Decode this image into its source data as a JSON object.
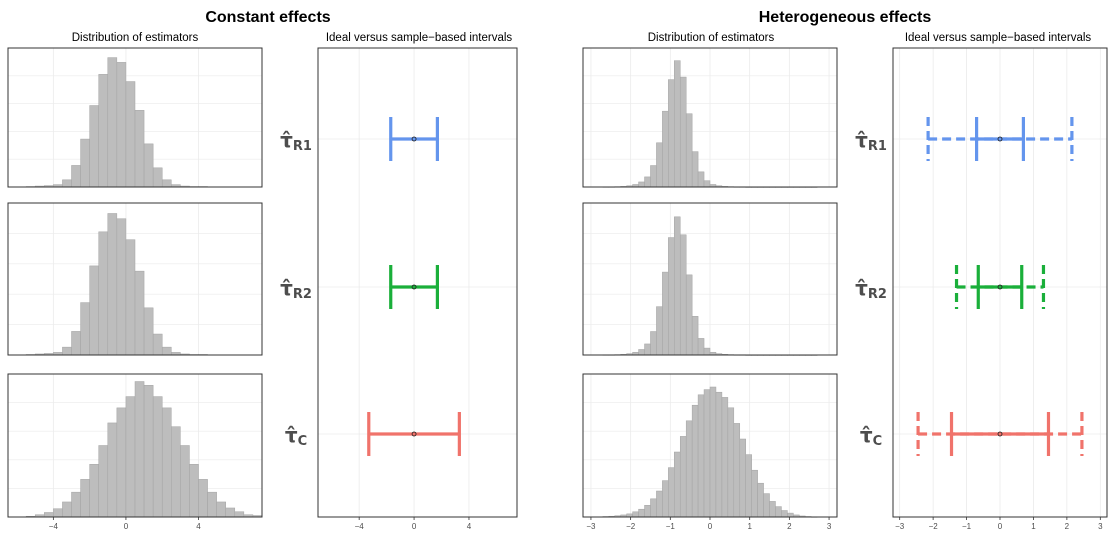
{
  "panels": [
    {
      "title": "Constant effects",
      "hist_subtitle": "Distribution of estimators",
      "interval_subtitle": "Ideal versus sample−based intervals"
    },
    {
      "title": "Heterogeneous effects",
      "hist_subtitle": "Distribution of estimators",
      "interval_subtitle": "Ideal versus sample−based intervals"
    }
  ],
  "row_labels": [
    {
      "main": "τ̂",
      "sub": "R1"
    },
    {
      "main": "τ̂",
      "sub": "R2"
    },
    {
      "main": "τ̂",
      "sub": "C"
    }
  ],
  "series_colors": [
    "#6495ed",
    "#1aaf3a",
    "#f0736b"
  ],
  "chart_data": [
    {
      "type": "histogram",
      "panel": "Constant effects",
      "estimator": "R1",
      "bin_width": 0.5,
      "x_start": -5.5,
      "xlim": [
        -6.5,
        7.5
      ],
      "ylim": [
        0,
        0.29
      ],
      "ticks": [
        -4,
        0,
        4
      ],
      "show_tick_labels": false,
      "density": [
        0.001,
        0.002,
        0.003,
        0.005,
        0.015,
        0.045,
        0.1,
        0.17,
        0.235,
        0.27,
        0.26,
        0.22,
        0.16,
        0.09,
        0.04,
        0.015,
        0.005,
        0.002,
        0.001,
        0.001
      ]
    },
    {
      "type": "histogram",
      "panel": "Constant effects",
      "estimator": "R2",
      "bin_width": 0.5,
      "x_start": -5.5,
      "xlim": [
        -6.5,
        7.5
      ],
      "ylim": [
        0,
        0.29
      ],
      "ticks": [
        -4,
        0,
        4
      ],
      "show_tick_labels": false,
      "density": [
        0.001,
        0.002,
        0.003,
        0.005,
        0.015,
        0.045,
        0.1,
        0.17,
        0.235,
        0.27,
        0.26,
        0.22,
        0.16,
        0.09,
        0.04,
        0.015,
        0.005,
        0.002,
        0.001,
        0.001
      ]
    },
    {
      "type": "histogram",
      "panel": "Constant effects",
      "estimator": "C",
      "bin_width": 0.5,
      "x_start": -5.5,
      "xlim": [
        -6.5,
        7.5
      ],
      "ylim": [
        0,
        0.19
      ],
      "ticks": [
        -4,
        0,
        4
      ],
      "show_tick_labels": true,
      "density": [
        0.001,
        0.003,
        0.006,
        0.011,
        0.02,
        0.033,
        0.05,
        0.07,
        0.095,
        0.125,
        0.145,
        0.16,
        0.18,
        0.175,
        0.16,
        0.145,
        0.12,
        0.095,
        0.07,
        0.05,
        0.033,
        0.02,
        0.012,
        0.007,
        0.003,
        0.002
      ]
    },
    {
      "type": "histogram",
      "panel": "Heterogeneous effects",
      "estimator": "R1",
      "bin_width": 0.15,
      "x_start": -2.7,
      "xlim": [
        -3.2,
        3.2
      ],
      "ylim": [
        0,
        1.1
      ],
      "ticks": [
        -3,
        -2,
        -1,
        0,
        1,
        2,
        3
      ],
      "show_tick_labels": false,
      "density": [
        0.002,
        0.002,
        0.003,
        0.005,
        0.01,
        0.02,
        0.04,
        0.08,
        0.17,
        0.35,
        0.6,
        0.85,
        1.0,
        0.87,
        0.58,
        0.28,
        0.12,
        0.05,
        0.02,
        0.01,
        0.005,
        0.003,
        0.002,
        0.002,
        0.001,
        0.001,
        0.001,
        0.001,
        0.001,
        0.001,
        0.001,
        0.001,
        0.001,
        0.001,
        0.001,
        0.001
      ]
    },
    {
      "type": "histogram",
      "panel": "Heterogeneous effects",
      "estimator": "R2",
      "bin_width": 0.15,
      "x_start": -2.7,
      "xlim": [
        -3.2,
        3.2
      ],
      "ylim": [
        0,
        1.1
      ],
      "ticks": [
        -3,
        -2,
        -1,
        0,
        1,
        2,
        3
      ],
      "show_tick_labels": false,
      "density": [
        0.002,
        0.002,
        0.003,
        0.005,
        0.01,
        0.02,
        0.04,
        0.08,
        0.17,
        0.35,
        0.6,
        0.85,
        1.0,
        0.87,
        0.58,
        0.28,
        0.12,
        0.05,
        0.02,
        0.01,
        0.005,
        0.003,
        0.002,
        0.002,
        0.001,
        0.001,
        0.001,
        0.001,
        0.001,
        0.001,
        0.001,
        0.001,
        0.001,
        0.001,
        0.001,
        0.001
      ]
    },
    {
      "type": "histogram",
      "panel": "Heterogeneous effects",
      "estimator": "C",
      "bin_width": 0.15,
      "x_start": -2.7,
      "xlim": [
        -3.2,
        3.2
      ],
      "ylim": [
        0,
        0.55
      ],
      "ticks": [
        -3,
        -2,
        -1,
        0,
        1,
        2,
        3
      ],
      "show_tick_labels": true,
      "density": [
        0.002,
        0.003,
        0.005,
        0.008,
        0.012,
        0.02,
        0.03,
        0.045,
        0.07,
        0.1,
        0.14,
        0.19,
        0.25,
        0.31,
        0.37,
        0.43,
        0.47,
        0.49,
        0.5,
        0.48,
        0.46,
        0.42,
        0.36,
        0.3,
        0.24,
        0.18,
        0.13,
        0.09,
        0.06,
        0.04,
        0.025,
        0.015,
        0.008,
        0.004,
        0.002,
        0.001
      ]
    },
    {
      "type": "interval",
      "panel": "Constant effects",
      "xlim": [
        -7,
        7.5
      ],
      "ticks": [
        -4,
        0,
        4
      ],
      "rows": [
        {
          "estimator": "R1",
          "center": 0,
          "ideal": [
            -1.7,
            1.7
          ],
          "sample": null
        },
        {
          "estimator": "R2",
          "center": 0,
          "ideal": [
            -1.7,
            1.7
          ],
          "sample": null
        },
        {
          "estimator": "C",
          "center": 0,
          "ideal": [
            -3.3,
            3.3
          ],
          "sample": null
        }
      ]
    },
    {
      "type": "interval",
      "panel": "Heterogeneous effects",
      "xlim": [
        -3.2,
        3.2
      ],
      "ticks": [
        -3,
        -2,
        -1,
        0,
        1,
        2,
        3
      ],
      "rows": [
        {
          "estimator": "R1",
          "center": 0,
          "ideal": [
            -0.7,
            0.7
          ],
          "sample": [
            -2.15,
            2.15
          ]
        },
        {
          "estimator": "R2",
          "center": 0,
          "ideal": [
            -0.65,
            0.65
          ],
          "sample": [
            -1.3,
            1.3
          ]
        },
        {
          "estimator": "C",
          "center": 0,
          "ideal": [
            -1.45,
            1.45
          ],
          "sample": [
            -2.45,
            2.45
          ]
        }
      ]
    }
  ]
}
